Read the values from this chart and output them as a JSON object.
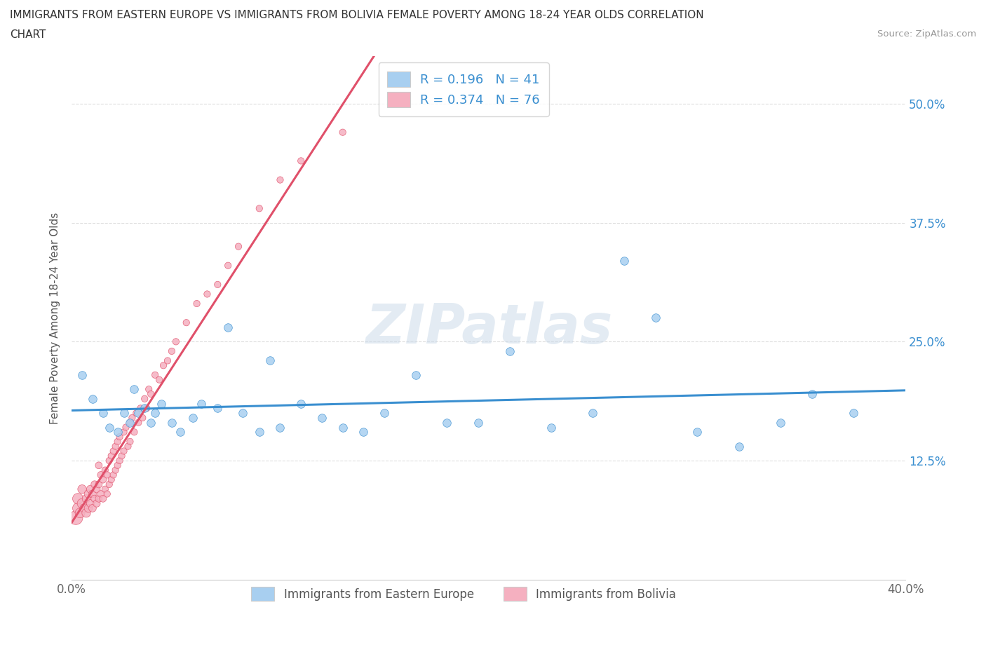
{
  "title_line1": "IMMIGRANTS FROM EASTERN EUROPE VS IMMIGRANTS FROM BOLIVIA FEMALE POVERTY AMONG 18-24 YEAR OLDS CORRELATION",
  "title_line2": "CHART",
  "source": "Source: ZipAtlas.com",
  "ylabel": "Female Poverty Among 18-24 Year Olds",
  "xlim": [
    0.0,
    0.4
  ],
  "ylim": [
    0.0,
    0.55
  ],
  "r_eastern": 0.196,
  "n_eastern": 41,
  "r_bolivia": 0.374,
  "n_bolivia": 76,
  "color_eastern": "#a8cff0",
  "color_bolivia": "#f5b0c0",
  "line_color_eastern": "#3a8fd0",
  "line_color_bolivia": "#e0506a",
  "watermark": "ZIPatlas",
  "legend_label_eastern": "Immigrants from Eastern Europe",
  "legend_label_bolivia": "Immigrants from Bolivia",
  "east_x": [
    0.005,
    0.01,
    0.015,
    0.018,
    0.022,
    0.025,
    0.028,
    0.03,
    0.032,
    0.035,
    0.038,
    0.04,
    0.043,
    0.048,
    0.052,
    0.058,
    0.062,
    0.07,
    0.075,
    0.082,
    0.09,
    0.095,
    0.1,
    0.11,
    0.12,
    0.13,
    0.14,
    0.15,
    0.165,
    0.18,
    0.195,
    0.21,
    0.23,
    0.25,
    0.265,
    0.28,
    0.3,
    0.32,
    0.34,
    0.355,
    0.375
  ],
  "east_y": [
    0.215,
    0.19,
    0.175,
    0.16,
    0.155,
    0.175,
    0.165,
    0.2,
    0.175,
    0.18,
    0.165,
    0.175,
    0.185,
    0.165,
    0.155,
    0.17,
    0.185,
    0.18,
    0.265,
    0.175,
    0.155,
    0.23,
    0.16,
    0.185,
    0.17,
    0.16,
    0.155,
    0.175,
    0.215,
    0.165,
    0.165,
    0.24,
    0.16,
    0.175,
    0.335,
    0.275,
    0.155,
    0.14,
    0.165,
    0.195,
    0.175
  ],
  "boli_x": [
    0.002,
    0.003,
    0.003,
    0.004,
    0.005,
    0.005,
    0.006,
    0.007,
    0.007,
    0.008,
    0.008,
    0.009,
    0.009,
    0.01,
    0.01,
    0.011,
    0.011,
    0.012,
    0.012,
    0.013,
    0.013,
    0.013,
    0.014,
    0.014,
    0.015,
    0.015,
    0.016,
    0.016,
    0.017,
    0.017,
    0.018,
    0.018,
    0.019,
    0.019,
    0.02,
    0.02,
    0.021,
    0.021,
    0.022,
    0.022,
    0.023,
    0.023,
    0.024,
    0.025,
    0.025,
    0.026,
    0.027,
    0.028,
    0.028,
    0.029,
    0.03,
    0.031,
    0.032,
    0.033,
    0.034,
    0.035,
    0.036,
    0.037,
    0.038,
    0.04,
    0.042,
    0.044,
    0.046,
    0.048,
    0.05,
    0.055,
    0.06,
    0.065,
    0.07,
    0.075,
    0.08,
    0.09,
    0.1,
    0.11,
    0.13,
    0.155
  ],
  "boli_y": [
    0.065,
    0.075,
    0.085,
    0.07,
    0.08,
    0.095,
    0.075,
    0.07,
    0.085,
    0.075,
    0.09,
    0.08,
    0.095,
    0.075,
    0.09,
    0.085,
    0.1,
    0.08,
    0.095,
    0.085,
    0.1,
    0.12,
    0.09,
    0.11,
    0.085,
    0.105,
    0.095,
    0.115,
    0.09,
    0.11,
    0.1,
    0.125,
    0.105,
    0.13,
    0.11,
    0.135,
    0.115,
    0.14,
    0.12,
    0.145,
    0.125,
    0.15,
    0.13,
    0.155,
    0.135,
    0.16,
    0.14,
    0.165,
    0.145,
    0.17,
    0.155,
    0.175,
    0.165,
    0.18,
    0.17,
    0.19,
    0.18,
    0.2,
    0.195,
    0.215,
    0.21,
    0.225,
    0.23,
    0.24,
    0.25,
    0.27,
    0.29,
    0.3,
    0.31,
    0.33,
    0.35,
    0.39,
    0.42,
    0.44,
    0.47,
    0.505
  ],
  "boli_sizes": [
    200,
    120,
    120,
    100,
    100,
    80,
    80,
    80,
    70,
    70,
    70,
    65,
    65,
    60,
    60,
    55,
    55,
    55,
    55,
    50,
    50,
    50,
    50,
    50,
    50,
    50,
    45,
    45,
    45,
    45,
    45,
    45,
    45,
    45,
    45,
    45,
    45,
    45,
    45,
    45,
    45,
    45,
    45,
    45,
    45,
    45,
    45,
    45,
    45,
    45,
    45,
    45,
    45,
    45,
    45,
    45,
    45,
    45,
    45,
    45,
    45,
    45,
    45,
    45,
    45,
    45,
    45,
    45,
    45,
    45,
    45,
    45,
    45,
    45,
    45,
    45
  ]
}
